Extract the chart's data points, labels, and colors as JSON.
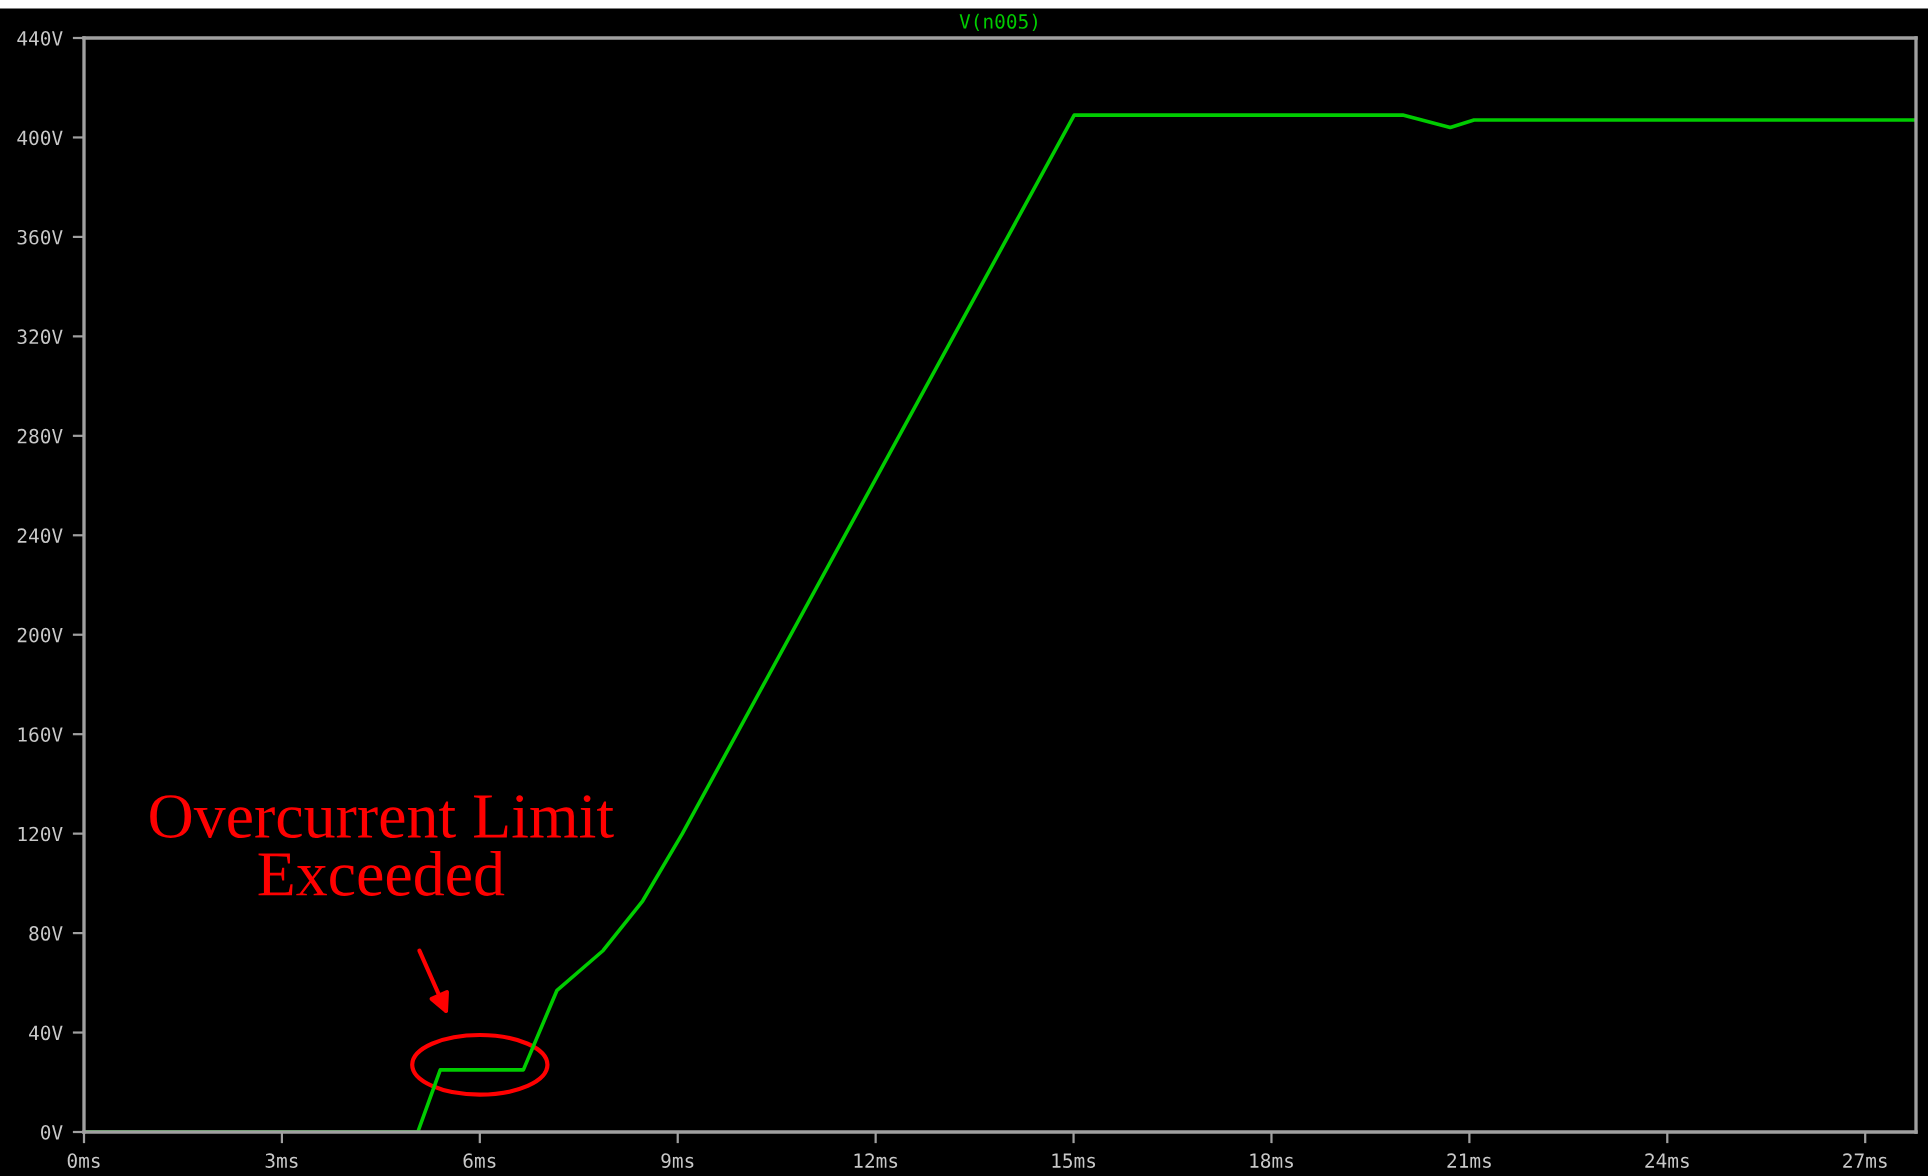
{
  "chart_data": {
    "type": "line",
    "x": [
      0,
      5.06,
      5.4,
      6.66,
      7.17,
      7.87,
      8.47,
      9.07,
      12.09,
      15.01,
      19.99,
      20.71,
      21.07,
      27.77
    ],
    "series": [
      {
        "name": "V(n005)",
        "color": "#00cc00",
        "values": [
          0,
          0,
          25,
          25,
          57,
          73,
          93,
          120,
          267,
          409,
          409,
          404,
          407,
          407
        ]
      }
    ],
    "xlim": [
      0,
      27.77
    ],
    "ylim": [
      0,
      440
    ],
    "xticks": [
      {
        "value": 0,
        "label": "0ms"
      },
      {
        "value": 3,
        "label": "3ms"
      },
      {
        "value": 6,
        "label": "6ms"
      },
      {
        "value": 9,
        "label": "9ms"
      },
      {
        "value": 12,
        "label": "12ms"
      },
      {
        "value": 15,
        "label": "15ms"
      },
      {
        "value": 18,
        "label": "18ms"
      },
      {
        "value": 21,
        "label": "21ms"
      },
      {
        "value": 24,
        "label": "24ms"
      },
      {
        "value": 27,
        "label": "27ms"
      }
    ],
    "yticks": [
      {
        "value": 0,
        "label": "0V"
      },
      {
        "value": 40,
        "label": "40V"
      },
      {
        "value": 80,
        "label": "80V"
      },
      {
        "value": 120,
        "label": "120V"
      },
      {
        "value": 160,
        "label": "160V"
      },
      {
        "value": 200,
        "label": "200V"
      },
      {
        "value": 240,
        "label": "240V"
      },
      {
        "value": 280,
        "label": "280V"
      },
      {
        "value": 320,
        "label": "320V"
      },
      {
        "value": 360,
        "label": "360V"
      },
      {
        "value": 400,
        "label": "400V"
      },
      {
        "value": 440,
        "label": "440V"
      }
    ],
    "grid": false,
    "legend": "top",
    "marker": "none",
    "line_style": "solid",
    "annotations": [
      {
        "text": "Overcurrent Limit\nExceeded",
        "x": 6,
        "y": 25
      }
    ]
  }
}
